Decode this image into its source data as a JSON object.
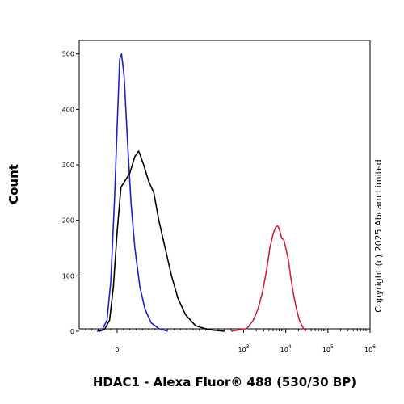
{
  "chart_data": {
    "type": "line",
    "title": "",
    "xlabel": "HDAC1 - Alexa Fluor® 488 (530/30 BP)",
    "ylabel": "Count",
    "x_scale": "biexponential",
    "xlim": [
      -300,
      1000000
    ],
    "ylim": [
      0,
      520
    ],
    "x_ticks": [
      {
        "value": 0,
        "label": "0"
      },
      {
        "value": 1000,
        "label": "10",
        "exp": "3"
      },
      {
        "value": 10000,
        "label": "10",
        "exp": "4"
      },
      {
        "value": 100000,
        "label": "10",
        "exp": "5"
      },
      {
        "value": 1000000,
        "label": "10",
        "exp": "6"
      }
    ],
    "y_ticks": [
      0,
      100,
      200,
      300,
      400,
      500
    ],
    "grid": false,
    "legend": "none",
    "annotation": "Copyright (c) 2025 Abcam Limited",
    "series": [
      {
        "color": "#2020c8",
        "points": [
          [
            -160,
            0
          ],
          [
            -120,
            2
          ],
          [
            -80,
            20
          ],
          [
            -50,
            90
          ],
          [
            -20,
            240
          ],
          [
            0,
            370
          ],
          [
            20,
            490
          ],
          [
            35,
            500
          ],
          [
            55,
            460
          ],
          [
            80,
            350
          ],
          [
            110,
            230
          ],
          [
            140,
            150
          ],
          [
            180,
            80
          ],
          [
            220,
            40
          ],
          [
            270,
            15
          ],
          [
            330,
            5
          ],
          [
            400,
            0
          ]
        ]
      },
      {
        "color": "#000000",
        "points": [
          [
            -140,
            0
          ],
          [
            -100,
            3
          ],
          [
            -60,
            20
          ],
          [
            -30,
            80
          ],
          [
            0,
            180
          ],
          [
            30,
            260
          ],
          [
            60,
            270
          ],
          [
            100,
            285
          ],
          [
            140,
            315
          ],
          [
            170,
            325
          ],
          [
            210,
            300
          ],
          [
            250,
            270
          ],
          [
            290,
            250
          ],
          [
            330,
            200
          ],
          [
            380,
            150
          ],
          [
            430,
            100
          ],
          [
            480,
            60
          ],
          [
            540,
            30
          ],
          [
            620,
            10
          ],
          [
            720,
            3
          ],
          [
            850,
            0
          ]
        ]
      },
      {
        "color": "#d02040",
        "points": [
          [
            900,
            0
          ],
          [
            1200,
            5
          ],
          [
            1700,
            20
          ],
          [
            2200,
            40
          ],
          [
            2800,
            70
          ],
          [
            3500,
            110
          ],
          [
            4200,
            150
          ],
          [
            5000,
            175
          ],
          [
            5800,
            188
          ],
          [
            6500,
            190
          ],
          [
            7300,
            180
          ],
          [
            8000,
            168
          ],
          [
            9000,
            165
          ],
          [
            10000,
            150
          ],
          [
            11500,
            130
          ],
          [
            13000,
            100
          ],
          [
            15000,
            70
          ],
          [
            18000,
            40
          ],
          [
            21000,
            20
          ],
          [
            25000,
            8
          ],
          [
            30000,
            0
          ]
        ]
      }
    ]
  }
}
